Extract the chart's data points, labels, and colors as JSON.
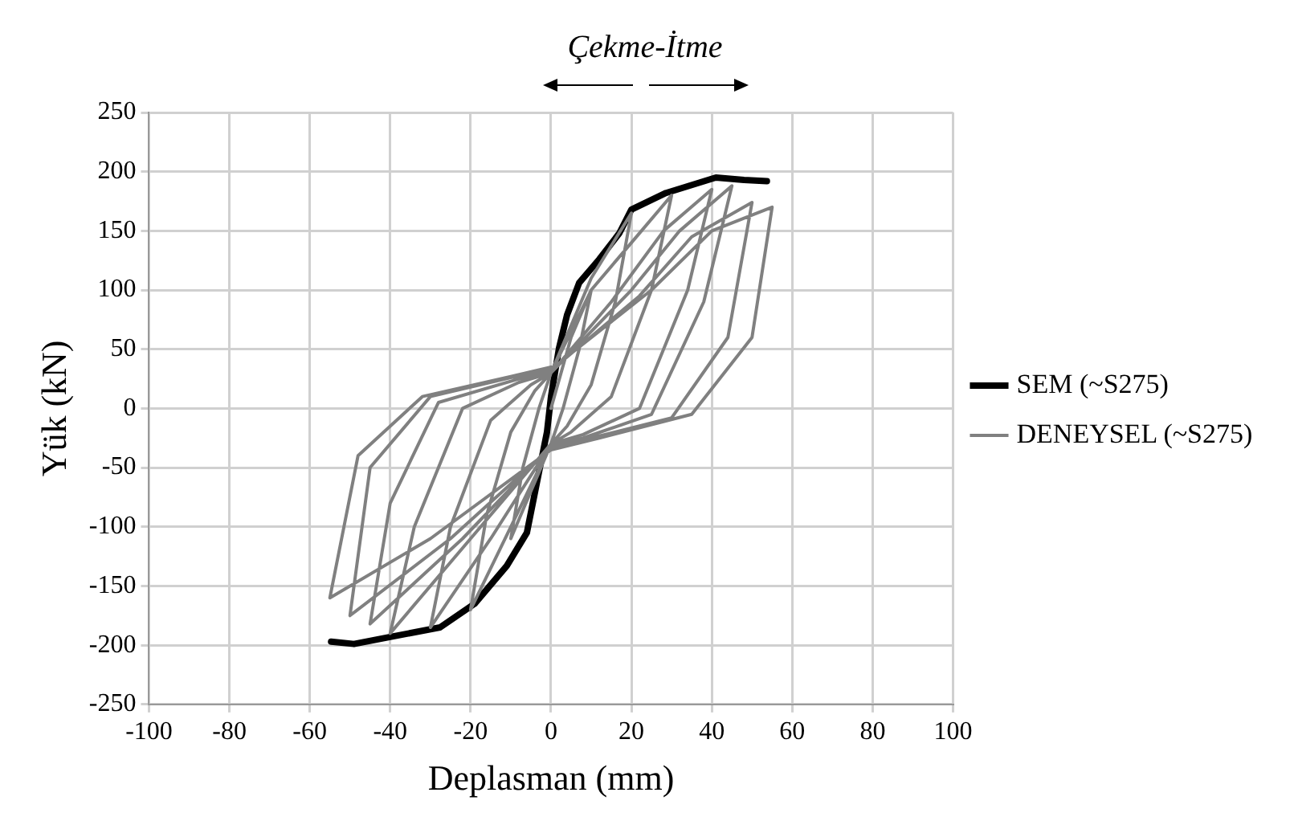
{
  "chart_data": {
    "type": "line",
    "title": "Çekme-İtme",
    "xlabel": "Deplasman (mm)",
    "ylabel": "Yük (kN)",
    "xlim": [
      -100,
      100
    ],
    "xticks": [
      -100,
      -80,
      -60,
      -40,
      -20,
      0,
      20,
      40,
      60,
      80,
      100
    ],
    "ylim": [
      -250,
      250
    ],
    "yticks": [
      -250,
      -200,
      -150,
      -100,
      -50,
      0,
      50,
      100,
      150,
      200,
      250
    ],
    "grid": true,
    "legend": "right",
    "marker": "none",
    "line_style": "solid",
    "series": [
      {
        "name": "SEM (~S275)",
        "color": "#000000",
        "x": [
          -54.7,
          -49,
          -40,
          -27.6,
          -19,
          -11,
          -6,
          -3,
          -1,
          0,
          2,
          4,
          7,
          12,
          17,
          20,
          28.6,
          41,
          48,
          53.7
        ],
        "values": [
          -197,
          -199,
          -193,
          -185,
          -165,
          -133,
          -105,
          -54,
          -20,
          10,
          51,
          79,
          106,
          126,
          148,
          168,
          182,
          195,
          193,
          192
        ]
      },
      {
        "name": "DENEYSEL (~S275)",
        "color": "#808080",
        "x": [
          0,
          5,
          10,
          7,
          3,
          0,
          -5,
          -10,
          -7,
          -3,
          0,
          5,
          10,
          20,
          16,
          10,
          4,
          0,
          -10,
          -20,
          -16,
          -10,
          -4,
          0,
          10,
          20,
          30,
          25,
          15,
          5,
          0,
          -15,
          -30,
          -25,
          -15,
          -5,
          0,
          15,
          28,
          40,
          34,
          22,
          8,
          0,
          -20,
          -40,
          -34,
          -22,
          -8,
          0,
          20,
          32,
          45,
          38,
          25,
          8,
          0,
          -22,
          -45,
          -40,
          -28,
          -8,
          0,
          22,
          35,
          50,
          44,
          30,
          10,
          0,
          -25,
          -50,
          -45,
          -30,
          -10,
          0,
          25,
          40,
          55,
          50,
          35,
          12,
          0,
          -30,
          -55,
          -48,
          -32,
          -10,
          0
        ],
        "values": [
          0,
          60,
          100,
          50,
          0,
          -30,
          -70,
          -110,
          -50,
          0,
          30,
          70,
          110,
          165,
          90,
          20,
          -15,
          -30,
          -100,
          -170,
          -90,
          -20,
          15,
          30,
          100,
          140,
          180,
          100,
          10,
          -20,
          -30,
          -110,
          -185,
          -100,
          -10,
          20,
          30,
          90,
          150,
          185,
          100,
          0,
          -22,
          -30,
          -110,
          -190,
          -100,
          0,
          22,
          30,
          100,
          150,
          188,
          90,
          -5,
          -25,
          -32,
          -110,
          -182,
          -80,
          5,
          25,
          32,
          95,
          145,
          174,
          60,
          -8,
          -25,
          -33,
          -110,
          -175,
          -50,
          10,
          26,
          33,
          100,
          150,
          170,
          60,
          -5,
          -25,
          -35,
          -110,
          -160,
          -40,
          10,
          27,
          35
        ]
      }
    ]
  }
}
